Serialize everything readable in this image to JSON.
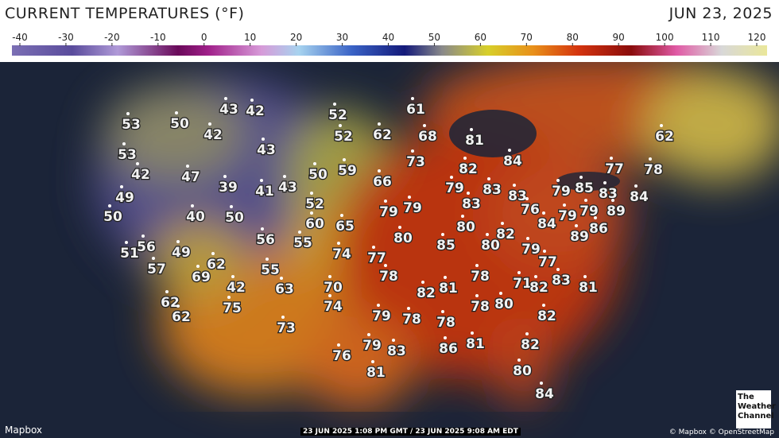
{
  "header": {
    "title": "CURRENT TEMPERATURES (°F)",
    "date": "JUN 23, 2025"
  },
  "legend": {
    "ticks": [
      -40,
      -30,
      -20,
      -10,
      0,
      10,
      20,
      30,
      40,
      50,
      60,
      70,
      80,
      90,
      100,
      110,
      120
    ]
  },
  "map": {
    "temperatures": [
      43,
      42,
      52,
      61,
      53,
      50,
      42,
      52,
      62,
      68,
      81,
      62,
      53,
      43,
      73,
      84,
      42,
      47,
      50,
      59,
      82,
      77,
      78,
      39,
      41,
      43,
      66,
      79,
      83,
      83,
      79,
      85,
      83,
      84,
      49,
      52,
      79,
      79,
      83,
      76,
      84,
      79,
      79,
      89,
      50,
      40,
      50,
      60,
      65,
      80,
      82,
      86,
      89,
      80,
      56,
      55,
      85,
      80,
      79,
      56,
      51,
      49,
      74,
      77,
      77,
      62,
      57,
      55,
      69,
      78,
      78,
      83,
      71,
      82,
      81,
      42,
      63,
      70,
      81,
      82,
      62,
      75,
      74,
      78,
      80,
      62,
      79,
      78,
      78,
      82,
      73,
      79,
      83,
      86,
      81,
      82,
      76,
      81,
      80,
      84
    ]
  },
  "footer": {
    "brand": "Mapbox",
    "timestamp": "23 JUN 2025 1:08 PM GMT / 23 JUN 2025 9:08 AM EDT",
    "attribution": "© Mapbox © OpenStreetMap",
    "logo": [
      "The",
      "Weather",
      "Channel"
    ]
  }
}
